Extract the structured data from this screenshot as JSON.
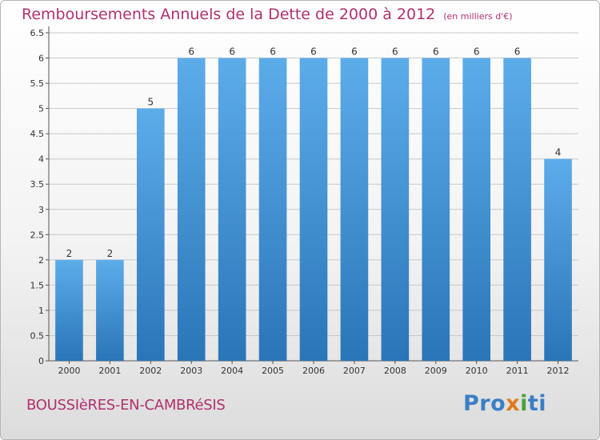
{
  "header": {
    "title": "Remboursements Annuels de la Dette de 2000 à 2012",
    "unit": "(en milliers d'€)"
  },
  "footer": {
    "commune": "BOUSSIèRES-EN-CAMBRéSIS",
    "logo_text": "Proxiti"
  },
  "colors": {
    "title": "#b0306e",
    "bar_top": "#5dacea",
    "bar_bottom": "#2a75b8",
    "grid": "#c8c8c8"
  },
  "chart_data": {
    "type": "bar",
    "title": "Remboursements Annuels de la Dette de 2000 à 2012",
    "categories": [
      "2000",
      "2001",
      "2002",
      "2003",
      "2004",
      "2005",
      "2006",
      "2007",
      "2008",
      "2009",
      "2010",
      "2011",
      "2012"
    ],
    "values": [
      2,
      2,
      5,
      6,
      6,
      6,
      6,
      6,
      6,
      6,
      6,
      6,
      4
    ],
    "data_labels": [
      "2",
      "2",
      "5",
      "6",
      "6",
      "6",
      "6",
      "6",
      "6",
      "6",
      "6",
      "6",
      "4"
    ],
    "yticks": [
      "0",
      "0.5",
      "1",
      "1.5",
      "2",
      "2.5",
      "3",
      "3.5",
      "4",
      "4.5",
      "5",
      "5.5",
      "6",
      "6.5"
    ],
    "ylim": [
      0,
      6.5
    ],
    "grid": true
  }
}
